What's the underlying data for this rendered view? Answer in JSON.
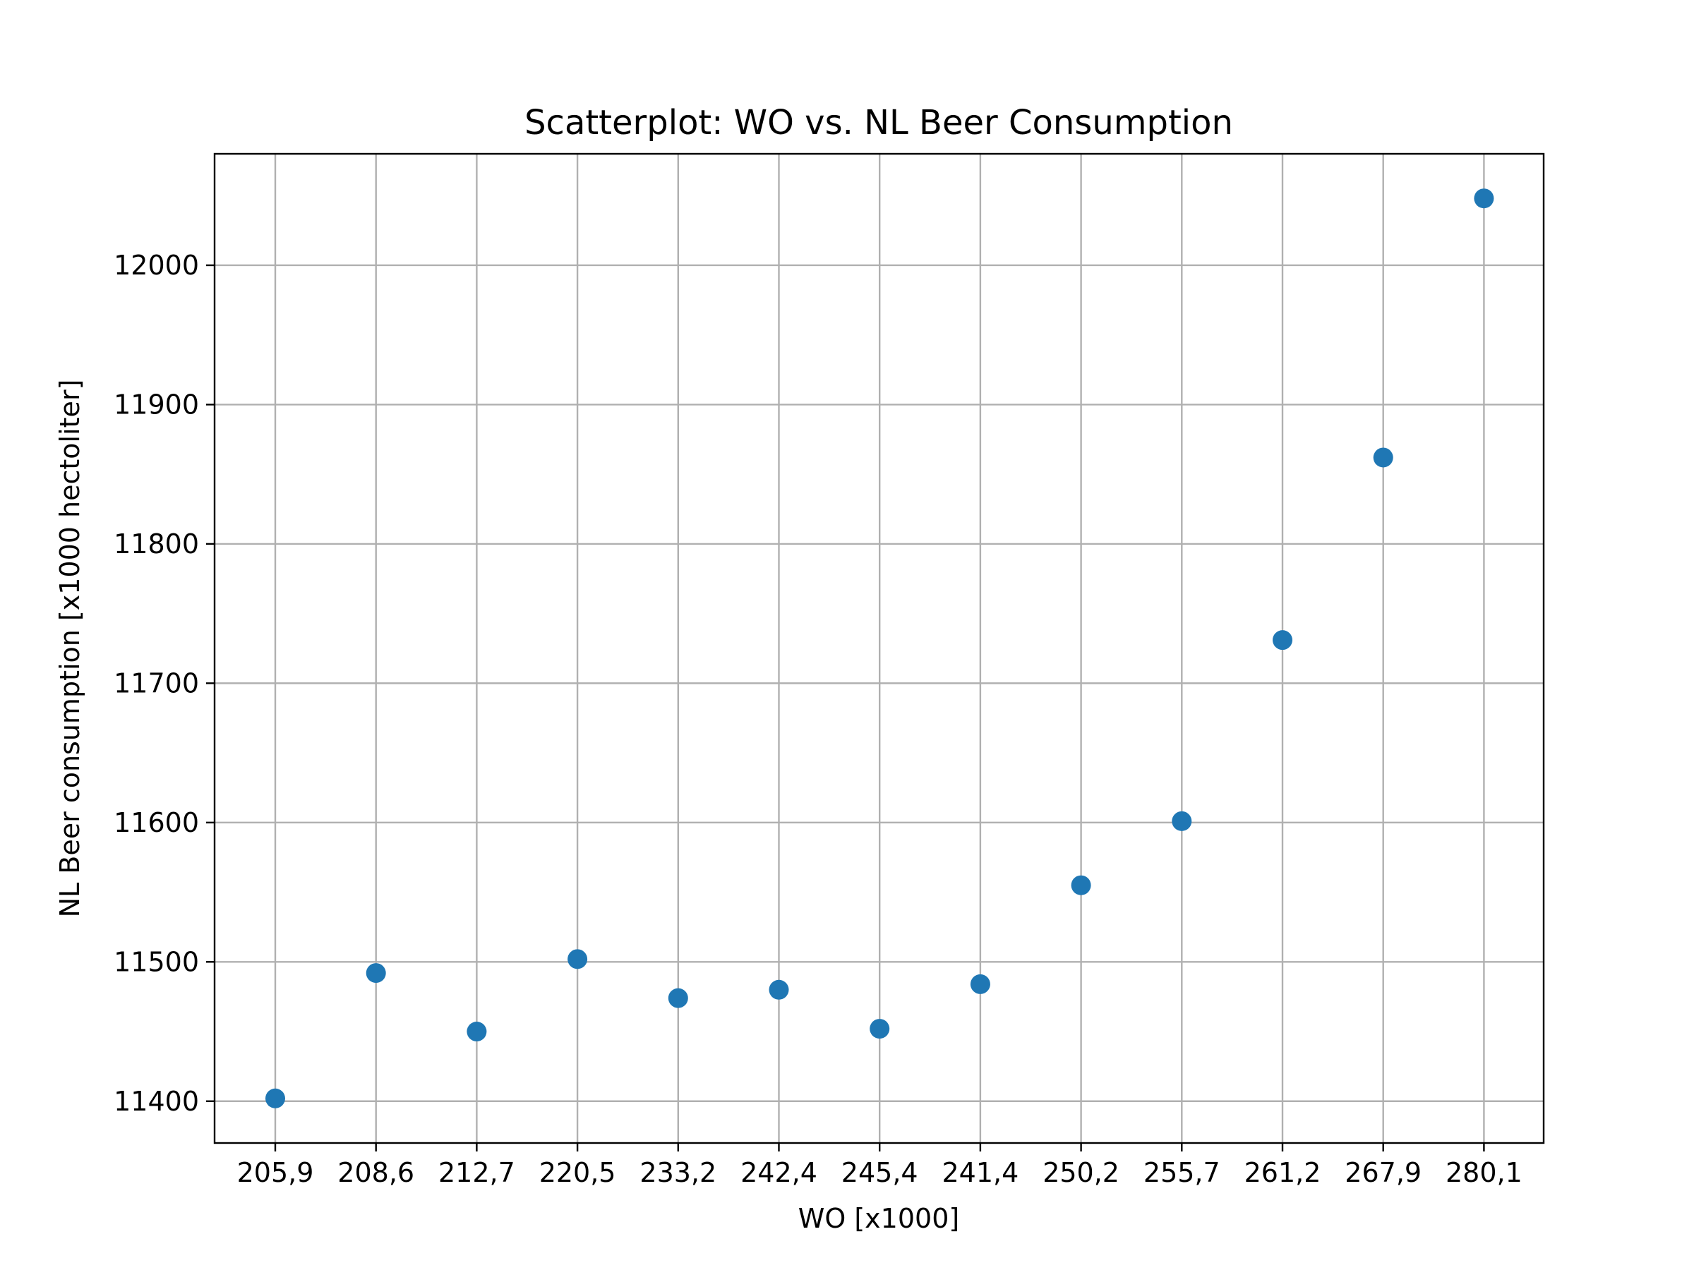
{
  "chart_data": {
    "type": "scatter",
    "title": "Scatterplot: WO vs. NL Beer Consumption",
    "xlabel": "WO [x1000]",
    "ylabel": "NL Beer consumption [x1000 hectoliter]",
    "categories": [
      "205,9",
      "208,6",
      "212,7",
      "220,5",
      "233,2",
      "242,4",
      "245,4",
      "241,4",
      "250,2",
      "255,7",
      "261,2",
      "267,9",
      "280,1"
    ],
    "values": [
      11402,
      11492,
      11450,
      11502,
      11474,
      11480,
      11452,
      11484,
      11555,
      11601,
      11731,
      11862,
      12048
    ],
    "y_ticks": [
      11400,
      11500,
      11600,
      11700,
      11800,
      11900,
      12000
    ],
    "ylim": [
      11370,
      12080
    ],
    "grid": true,
    "marker_color": "#1f77b4"
  }
}
